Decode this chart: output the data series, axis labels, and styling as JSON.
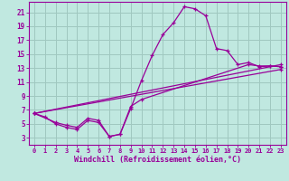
{
  "bg_color": "#c0e8e0",
  "grid_color": "#a0c8c0",
  "line_color": "#990099",
  "marker": "+",
  "xlabel": "Windchill (Refroidissement éolien,°C)",
  "xlim": [
    -0.5,
    23.5
  ],
  "ylim": [
    2,
    22.5
  ],
  "yticks": [
    3,
    5,
    7,
    9,
    11,
    13,
    15,
    17,
    19,
    21
  ],
  "xticks": [
    0,
    1,
    2,
    3,
    4,
    5,
    6,
    7,
    8,
    9,
    10,
    11,
    12,
    13,
    14,
    15,
    16,
    17,
    18,
    19,
    20,
    21,
    22,
    23
  ],
  "series": [
    {
      "x": [
        0,
        1,
        2,
        3,
        4,
        5,
        6,
        7,
        8,
        9,
        10,
        11,
        12,
        13,
        14,
        15,
        16,
        17,
        18,
        19,
        20,
        21,
        22,
        23
      ],
      "y": [
        6.5,
        6.0,
        5.0,
        4.5,
        4.2,
        5.5,
        5.2,
        3.2,
        3.5,
        7.2,
        11.2,
        14.8,
        17.8,
        19.5,
        21.8,
        21.5,
        20.5,
        15.8,
        15.5,
        13.5,
        13.8,
        13.2,
        13.3,
        13.2
      ]
    },
    {
      "x": [
        0,
        23
      ],
      "y": [
        6.5,
        13.5
      ]
    },
    {
      "x": [
        0,
        23
      ],
      "y": [
        6.5,
        12.8
      ]
    },
    {
      "x": [
        0,
        2,
        3,
        4,
        5,
        6,
        7,
        8,
        9,
        10,
        20,
        21,
        22,
        23
      ],
      "y": [
        6.5,
        5.2,
        4.8,
        4.5,
        5.8,
        5.5,
        3.2,
        3.5,
        7.5,
        8.5,
        13.5,
        13.3,
        13.3,
        13.2
      ]
    }
  ]
}
